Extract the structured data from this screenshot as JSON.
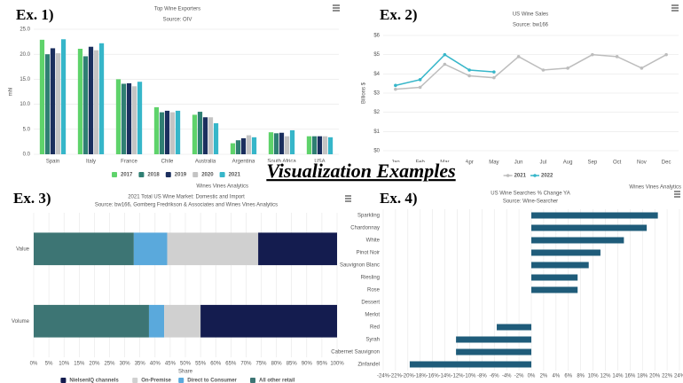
{
  "heading": "Visualization Examples",
  "labels": [
    "Ex. 1)",
    "Ex. 2)",
    "Ex. 3)",
    "Ex. 4)"
  ],
  "chart_data": [
    {
      "type": "bar",
      "title": "Top Wine Exporters",
      "subtitle": "Source: OIV",
      "y_label": "mhl",
      "credit": "Wines Vines Analytics",
      "categories": [
        "Spain",
        "Italy",
        "France",
        "Chile",
        "Australia",
        "Argentina",
        "South Africa",
        "USA"
      ],
      "series": [
        {
          "name": "2017",
          "color": "#5fd36b",
          "values": [
            22.9,
            21.1,
            15.0,
            9.4,
            7.9,
            2.2,
            4.4,
            3.6
          ]
        },
        {
          "name": "2018",
          "color": "#2f7f73",
          "values": [
            20.0,
            19.6,
            14.1,
            8.4,
            8.5,
            2.8,
            4.2,
            3.6
          ]
        },
        {
          "name": "2019",
          "color": "#1b2f5e",
          "values": [
            21.2,
            21.5,
            14.2,
            8.7,
            7.4,
            3.2,
            4.3,
            3.6
          ]
        },
        {
          "name": "2020",
          "color": "#c4c4c4",
          "values": [
            20.2,
            20.8,
            13.6,
            8.4,
            7.4,
            3.8,
            3.6,
            3.6
          ]
        },
        {
          "name": "2021",
          "color": "#36b6c9",
          "values": [
            23.0,
            22.2,
            14.5,
            8.7,
            6.2,
            3.4,
            4.8,
            3.4
          ]
        }
      ],
      "ylim": [
        0,
        25
      ],
      "yticks": [
        {
          "value": 0,
          "label": "0.0"
        },
        {
          "value": 5,
          "label": "5.0"
        },
        {
          "value": 10,
          "label": "10.0"
        },
        {
          "value": 15,
          "label": "15.0"
        },
        {
          "value": 20,
          "label": "20.0"
        },
        {
          "value": 25,
          "label": "25.0"
        }
      ],
      "grid": true,
      "legend": "bottom"
    },
    {
      "type": "line",
      "title": "US Wine Sales",
      "subtitle": "Source: bw166",
      "y_label": "Billions $",
      "credit": "Wines Vines Analytics",
      "categories": [
        "Jan",
        "Feb",
        "Mar",
        "Apr",
        "May",
        "Jun",
        "Jul",
        "Aug",
        "Sep",
        "Oct",
        "Nov",
        "Dec"
      ],
      "series": [
        {
          "name": "2021",
          "color": "#bdbdbd",
          "values": [
            3.2,
            3.3,
            4.5,
            3.9,
            3.8,
            4.9,
            4.2,
            4.3,
            5.0,
            4.9,
            4.3,
            5.0
          ]
        },
        {
          "name": "2022",
          "color": "#36b6c9",
          "values": [
            3.4,
            3.7,
            5.0,
            4.2,
            4.1,
            null,
            null,
            null,
            null,
            null,
            null,
            null
          ]
        }
      ],
      "ylim": [
        0,
        6
      ],
      "yticks": [
        {
          "value": 0,
          "label": "$0"
        },
        {
          "value": 1,
          "label": "$1"
        },
        {
          "value": 2,
          "label": "$2"
        },
        {
          "value": 3,
          "label": "$3"
        },
        {
          "value": 4,
          "label": "$4"
        },
        {
          "value": 5,
          "label": "$5"
        },
        {
          "value": 6,
          "label": "$6"
        }
      ],
      "grid": true,
      "legend": "bottom"
    },
    {
      "type": "bar",
      "horizontal": true,
      "stacked": true,
      "title": "2021 Total US Wine Market: Domestic and Import",
      "subtitle": "Source: bw166, Gomberg Fredrikson & Associates and Wines Vines Analytics",
      "x_label": "Share",
      "categories": [
        "Value",
        "Volume"
      ],
      "series": [
        {
          "name": "NielsenIQ channels",
          "color": "#141c4f",
          "values": [
            26,
            45
          ]
        },
        {
          "name": "On-Premise",
          "color": "#d0d0d0",
          "values": [
            30,
            12
          ]
        },
        {
          "name": "Direct to Consumer",
          "color": "#5aa9dc",
          "values": [
            11,
            5
          ]
        },
        {
          "name": "All other retail",
          "color": "#3d7574",
          "values": [
            33,
            38
          ]
        }
      ],
      "xlim": [
        0,
        100
      ],
      "xticks": [
        {
          "value": 0,
          "label": "0%"
        },
        {
          "value": 5,
          "label": "5%"
        },
        {
          "value": 10,
          "label": "10%"
        },
        {
          "value": 15,
          "label": "15%"
        },
        {
          "value": 20,
          "label": "20%"
        },
        {
          "value": 25,
          "label": "25%"
        },
        {
          "value": 30,
          "label": "30%"
        },
        {
          "value": 35,
          "label": "35%"
        },
        {
          "value": 40,
          "label": "40%"
        },
        {
          "value": 45,
          "label": "45%"
        },
        {
          "value": 50,
          "label": "50%"
        },
        {
          "value": 55,
          "label": "55%"
        },
        {
          "value": 60,
          "label": "60%"
        },
        {
          "value": 65,
          "label": "65%"
        },
        {
          "value": 70,
          "label": "70%"
        },
        {
          "value": 75,
          "label": "75%"
        },
        {
          "value": 80,
          "label": "80%"
        },
        {
          "value": 85,
          "label": "85%"
        },
        {
          "value": 90,
          "label": "90%"
        },
        {
          "value": 95,
          "label": "95%"
        },
        {
          "value": 100,
          "label": "100%"
        }
      ],
      "grid": true,
      "legend": "bottom"
    },
    {
      "type": "bar",
      "horizontal": true,
      "title": "US Wine Searches % Change YA",
      "subtitle": "Source: Wine-Searcher",
      "categories": [
        "Sparkling",
        "Chardonnay",
        "White",
        "Pinot Noir",
        "Sauvignon Blanc",
        "Riesling",
        "Rose",
        "Dessert",
        "Merlot",
        "Red",
        "Syrah",
        "Cabernet Sauvignon",
        "Zinfandel"
      ],
      "values": [
        20.5,
        18.7,
        15,
        11.2,
        9.3,
        7.5,
        7.5,
        0,
        0,
        -5.6,
        -12.2,
        -12.2,
        -19.7
      ],
      "color": "#1f5c7a",
      "xlim": [
        -24,
        24
      ],
      "xticks": [
        {
          "value": -24,
          "label": "-24%"
        },
        {
          "value": -22,
          "label": "-22%"
        },
        {
          "value": -20,
          "label": "-20%"
        },
        {
          "value": -18,
          "label": "-18%"
        },
        {
          "value": -16,
          "label": "-16%"
        },
        {
          "value": -14,
          "label": "-14%"
        },
        {
          "value": -12,
          "label": "-12%"
        },
        {
          "value": -10,
          "label": "-10%"
        },
        {
          "value": -8,
          "label": "-8%"
        },
        {
          "value": -6,
          "label": "-6%"
        },
        {
          "value": -4,
          "label": "-4%"
        },
        {
          "value": -2,
          "label": "-2%"
        },
        {
          "value": 0,
          "label": "0%"
        },
        {
          "value": 2,
          "label": "2%"
        },
        {
          "value": 4,
          "label": "4%"
        },
        {
          "value": 6,
          "label": "6%"
        },
        {
          "value": 8,
          "label": "8%"
        },
        {
          "value": 10,
          "label": "10%"
        },
        {
          "value": 12,
          "label": "12%"
        },
        {
          "value": 14,
          "label": "14%"
        },
        {
          "value": 16,
          "label": "16%"
        },
        {
          "value": 18,
          "label": "18%"
        },
        {
          "value": 20,
          "label": "20%"
        },
        {
          "value": 22,
          "label": "22%"
        },
        {
          "value": 24,
          "label": "24%"
        }
      ],
      "grid": true
    }
  ]
}
